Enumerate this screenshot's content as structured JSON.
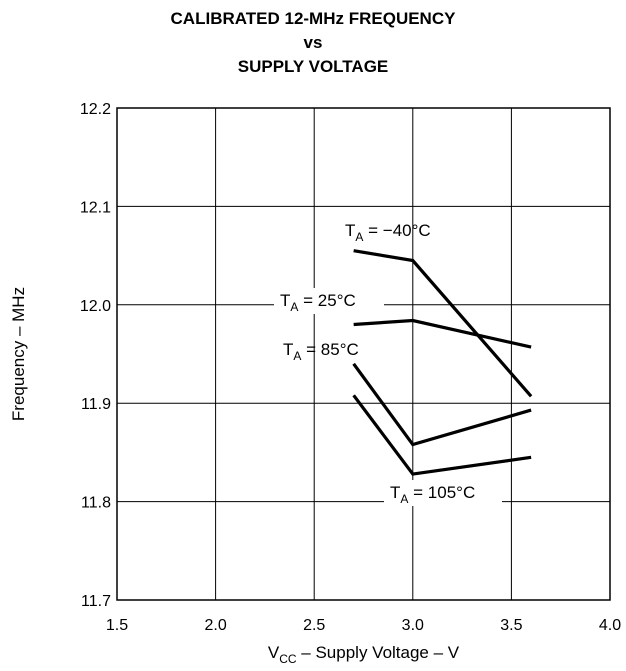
{
  "chart_data": {
    "type": "line",
    "title_lines": [
      "CALIBRATED 12-MHz FREQUENCY",
      "vs",
      "SUPPLY VOLTAGE"
    ],
    "xlabel": {
      "main": "V",
      "sub": "CC",
      "rest": " – Supply Voltage – V"
    },
    "ylabel": "Frequency – MHz",
    "xlim": [
      1.5,
      4.0
    ],
    "ylim": [
      11.7,
      12.2
    ],
    "x_ticks": [
      "1.5",
      "2.0",
      "2.5",
      "3.0",
      "3.5",
      "4.0"
    ],
    "y_ticks": [
      "12.2",
      "12.1",
      "12.0",
      "11.9",
      "11.8",
      "11.7"
    ],
    "grid": true,
    "series": [
      {
        "name": {
          "main": "T",
          "sub": "A",
          "rest": " = −40°C"
        },
        "x": [
          2.7,
          3.0,
          3.6
        ],
        "y": [
          12.055,
          12.045,
          11.907
        ]
      },
      {
        "name": {
          "main": "T",
          "sub": "A",
          "rest": " = 25°C"
        },
        "x": [
          2.7,
          3.0,
          3.6
        ],
        "y": [
          11.98,
          11.984,
          11.957
        ]
      },
      {
        "name": {
          "main": "T",
          "sub": "A",
          "rest": " = 85°C"
        },
        "x": [
          2.7,
          3.0,
          3.6
        ],
        "y": [
          11.94,
          11.858,
          11.893
        ]
      },
      {
        "name": {
          "main": "T",
          "sub": "A",
          "rest": " = 105°C"
        },
        "x": [
          2.7,
          3.0,
          3.6
        ],
        "y": [
          11.908,
          11.828,
          11.845
        ]
      }
    ]
  }
}
